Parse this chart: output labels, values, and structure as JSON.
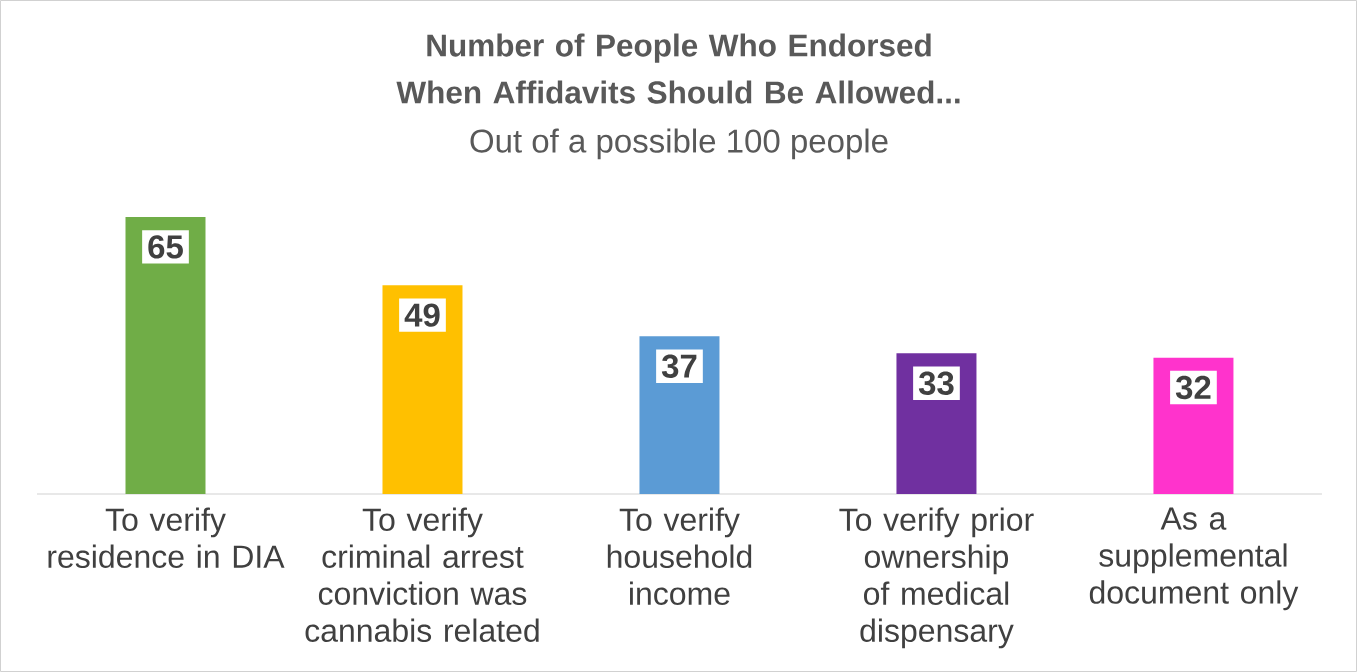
{
  "chart_data": {
    "type": "bar",
    "title": "Number of People Who Endorsed When Affidavits Should Be Allowed...",
    "subtitle": "Out of a possible 100 people",
    "categories": [
      "To verify residence in DIA",
      "To verify criminal arrest conviction was cannabis related",
      "To verify household income",
      "To verify prior ownership of medical dispensary",
      "As a supplemental document only"
    ],
    "values": [
      65,
      49,
      37,
      33,
      32
    ],
    "colors": [
      "#70ad47",
      "#ffc000",
      "#5b9bd5",
      "#7030a0",
      "#ff33cc"
    ],
    "data_labels": true
  }
}
